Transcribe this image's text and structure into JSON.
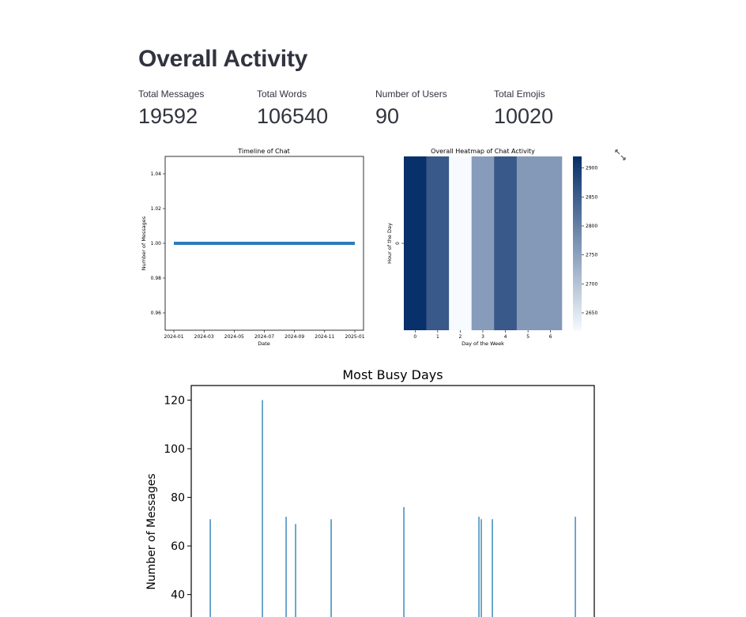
{
  "page": {
    "title": "Overall Activity"
  },
  "metrics": [
    {
      "label": "Total Messages",
      "value": "19592"
    },
    {
      "label": "Total Words",
      "value": "106540"
    },
    {
      "label": "Number of Users",
      "value": "90"
    },
    {
      "label": "Total Emojis",
      "value": "10020"
    }
  ],
  "icons": {
    "expand": "expand-fullscreen-icon"
  },
  "colors": {
    "line": "#2b7bba",
    "bar": "#1f77b4",
    "heatmap_min": "#f7fbff",
    "heatmap_max": "#08306b"
  },
  "chart_data": [
    {
      "type": "line",
      "title": "Timeline of Chat",
      "xlabel": "Date",
      "ylabel": "Number of Messages",
      "x_ticks": [
        "2024-01",
        "2024-03",
        "2024-05",
        "2024-07",
        "2024-09",
        "2024-11",
        "2025-01"
      ],
      "y_ticks": [
        "0.96",
        "0.98",
        "1.00",
        "1.02",
        "1.04"
      ],
      "ylim": [
        0.95,
        1.05
      ],
      "series": [
        {
          "x": [
            "2024-01",
            "2025-01"
          ],
          "values": [
            1.0,
            1.0
          ]
        }
      ]
    },
    {
      "type": "heatmap",
      "title": "Overall Heatmap of Chat Activity",
      "xlabel": "Day of the Week",
      "ylabel": "Hour of the Day",
      "x_ticks": [
        "0",
        "1",
        "2",
        "3",
        "4",
        "5",
        "6"
      ],
      "y_ticks": [
        "0"
      ],
      "values": [
        [
          2920,
          2860,
          2620,
          2760,
          2860,
          2765,
          2765
        ]
      ],
      "colorbar_ticks": [
        "2650",
        "2700",
        "2750",
        "2800",
        "2850",
        "2900"
      ],
      "vmin": 2620,
      "vmax": 2920
    },
    {
      "type": "bar",
      "title": "Most Busy Days",
      "ylabel": "Number of Messages",
      "y_ticks": [
        "40",
        "60",
        "80",
        "100",
        "120"
      ],
      "ylim": [
        22,
        126
      ],
      "values": [
        71,
        120,
        72,
        69,
        71,
        76,
        72,
        71,
        71,
        72
      ]
    }
  ]
}
